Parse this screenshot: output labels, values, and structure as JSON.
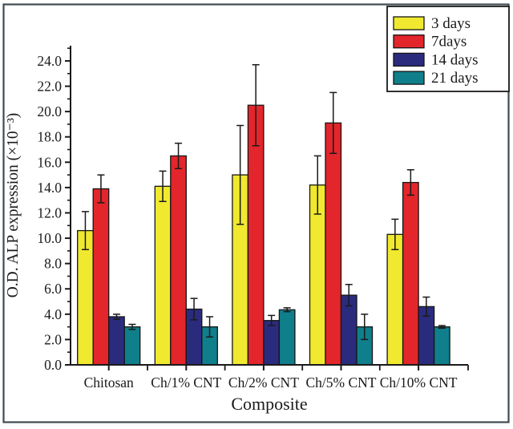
{
  "figure": {
    "background": "#ffffff",
    "border_color": "#3e4b52"
  },
  "chart_data": {
    "type": "bar",
    "title": "",
    "xlabel": "Composite",
    "ylabel": "O.D. ALP expression (×10⁻³)",
    "ylim": [
      0,
      24
    ],
    "ytick_step": 2,
    "ytick_labels": [
      "0.0",
      "2.0",
      "4.0",
      "6.0",
      "8.0",
      "10.0",
      "12.0",
      "14.0",
      "16.0",
      "18.0",
      "20.0",
      "22.0",
      "24.0"
    ],
    "categories": [
      "Chitosan",
      "Ch/1% CNT",
      "Ch/2% CNT",
      "Ch/5% CNT",
      "Ch/10% CNT"
    ],
    "series": [
      {
        "name": "3 days",
        "color": "#f0e92f",
        "values": [
          10.6,
          14.1,
          15.0,
          14.2,
          10.3
        ],
        "errors": [
          1.5,
          1.2,
          3.9,
          2.3,
          1.2
        ]
      },
      {
        "name": "7days",
        "color": "#e2262b",
        "values": [
          13.9,
          16.5,
          20.5,
          19.1,
          14.4
        ],
        "errors": [
          1.1,
          1.0,
          3.2,
          2.4,
          1.0
        ]
      },
      {
        "name": "14 days",
        "color": "#2b2b7e",
        "values": [
          3.8,
          4.4,
          3.5,
          5.5,
          4.6
        ],
        "errors": [
          0.2,
          0.85,
          0.4,
          0.85,
          0.75
        ]
      },
      {
        "name": "21 days",
        "color": "#0f7f8b",
        "values": [
          3.0,
          3.0,
          4.35,
          3.0,
          3.0
        ],
        "errors": [
          0.2,
          0.8,
          0.15,
          1.0,
          0.1
        ]
      }
    ],
    "legend_position": "top-right",
    "grid": false,
    "axis_color": "#1a1a1a",
    "bar_edge_color": "#151515",
    "error_bar_color": "#1a1a1a"
  }
}
